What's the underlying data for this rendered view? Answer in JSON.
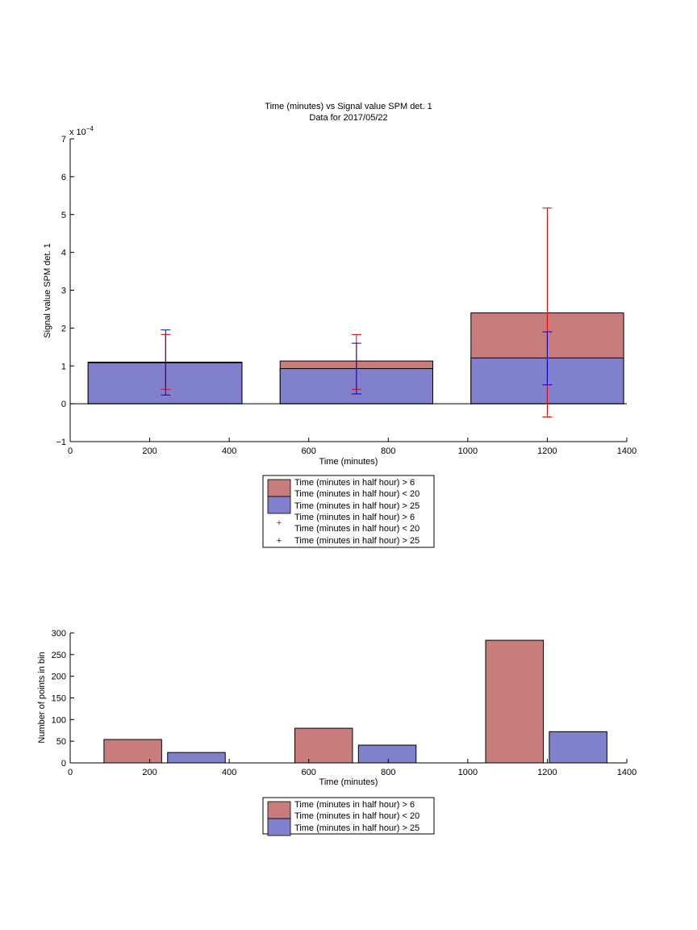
{
  "chart_data": [
    {
      "type": "bar",
      "title": "Time (minutes) vs Signal value SPM det. 1",
      "subtitle": "Data for 2017/05/22",
      "xlabel": "Time (minutes)",
      "ylabel": "Signal value SPM det. 1",
      "yexponent": "x 10",
      "yexponent_power": "−4",
      "xlim": [
        0,
        1400
      ],
      "ylim": [
        -1,
        7
      ],
      "xticks": [
        "0",
        "200",
        "400",
        "600",
        "800",
        "1000",
        "1200",
        "1400"
      ],
      "yticks": [
        "−1",
        "0",
        "1",
        "2",
        "3",
        "4",
        "5",
        "6",
        "7"
      ],
      "grid": false,
      "bins": [
        {
          "x0": 45,
          "x1": 432,
          "center": 240,
          "value_red": 1.1,
          "value_blue": 1.08,
          "err_red": [
            0.38,
            1.83
          ],
          "err_blue": [
            0.23,
            1.95
          ]
        },
        {
          "x0": 528,
          "x1": 912,
          "center": 720,
          "value_red": 1.13,
          "value_blue": 0.93,
          "err_red": [
            0.38,
            1.83
          ],
          "err_blue": [
            0.26,
            1.6
          ]
        },
        {
          "x0": 1008,
          "x1": 1392,
          "center": 1200,
          "value_red": 2.4,
          "value_blue": 1.21,
          "err_red": [
            -0.35,
            5.17
          ],
          "err_blue": [
            0.5,
            1.9
          ]
        }
      ],
      "colors": {
        "red_bar": "#c97c7c",
        "blue_bar": "#8080cc",
        "red_err": "#e00000",
        "blue_err": "#0000cc"
      },
      "legend": {
        "placement": "below",
        "entries": [
          "Time (minutes in half hour) > 6",
          "Time (minutes in half hour) < 20",
          "Time (minutes in half hour) > 25",
          "Time (minutes in half hour) > 6",
          "Time (minutes in half hour) < 20",
          "Time (minutes in half hour) > 25"
        ]
      }
    },
    {
      "type": "bar",
      "xlabel": "Time (minutes)",
      "ylabel": "Number of points in bin",
      "xlim": [
        0,
        1400
      ],
      "ylim": [
        0,
        300
      ],
      "xticks": [
        "0",
        "200",
        "400",
        "600",
        "800",
        "1000",
        "1200",
        "1400"
      ],
      "yticks": [
        "0",
        "50",
        "100",
        "150",
        "200",
        "250",
        "300"
      ],
      "grid": false,
      "series": [
        {
          "color": "red",
          "bars": [
            {
              "x0": 85,
              "x1": 230,
              "value": 54
            },
            {
              "x0": 565,
              "x1": 710,
              "value": 80
            },
            {
              "x0": 1045,
              "x1": 1190,
              "value": 283
            }
          ]
        },
        {
          "color": "blue",
          "bars": [
            {
              "x0": 245,
              "x1": 390,
              "value": 24
            },
            {
              "x0": 725,
              "x1": 870,
              "value": 41
            },
            {
              "x0": 1205,
              "x1": 1350,
              "value": 72
            }
          ]
        }
      ],
      "legend": {
        "placement": "below",
        "entries": [
          "Time (minutes in half hour) > 6",
          "Time (minutes in half hour) < 20",
          "Time (minutes in half hour) > 25"
        ]
      }
    }
  ]
}
